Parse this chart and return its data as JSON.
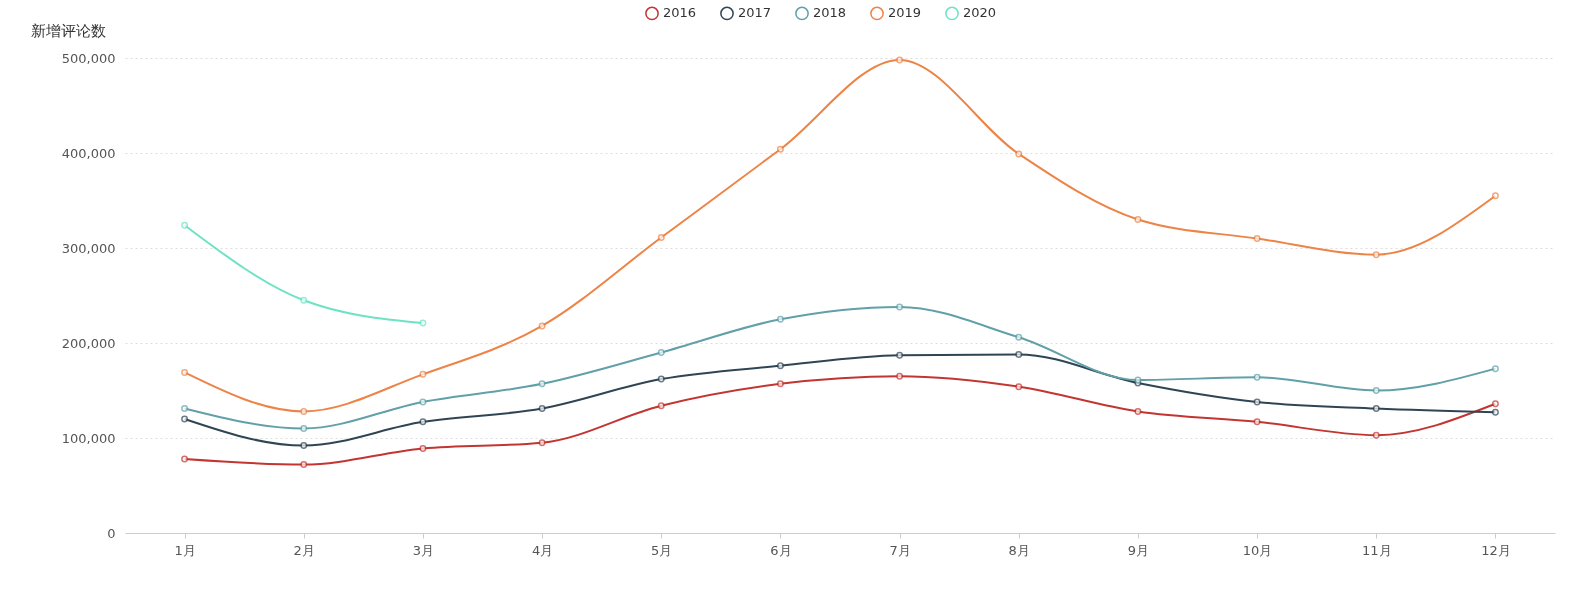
{
  "chart_data": {
    "type": "line",
    "ylabel": "新增评论数",
    "categories": [
      "1月",
      "2月",
      "3月",
      "4月",
      "5月",
      "6月",
      "7月",
      "8月",
      "9月",
      "10月",
      "11月",
      "12月"
    ],
    "series": [
      {
        "name": "2016",
        "color": "#c23531",
        "values": [
          78000,
          72000,
          89000,
          95000,
          134000,
          157000,
          165000,
          154000,
          128000,
          117000,
          103000,
          136000
        ]
      },
      {
        "name": "2017",
        "color": "#2f4554",
        "values": [
          120000,
          92000,
          117000,
          131000,
          162000,
          176000,
          187000,
          188000,
          158000,
          138000,
          131000,
          127000
        ]
      },
      {
        "name": "2018",
        "color": "#61a0a8",
        "values": [
          131000,
          110000,
          138000,
          157000,
          190000,
          225000,
          238000,
          206000,
          161000,
          164000,
          150000,
          173000
        ]
      },
      {
        "name": "2019",
        "color": "#ed8447",
        "values": [
          169000,
          128000,
          167000,
          218000,
          311000,
          404000,
          498000,
          399000,
          330000,
          310000,
          293000,
          355000
        ]
      },
      {
        "name": "2020",
        "color": "#6ee2c4",
        "values": [
          324000,
          245000,
          221000,
          null,
          null,
          null,
          null,
          null,
          null,
          null,
          null,
          null
        ]
      }
    ],
    "ylim": [
      0,
      500000
    ],
    "yticks": [
      0,
      {
        "value": 100000,
        "label": "100,000"
      },
      {
        "value": 200000,
        "label": "200,000"
      },
      {
        "value": 300000,
        "label": "300,000"
      },
      {
        "value": 400000,
        "label": "400,000"
      },
      {
        "value": 500000,
        "label": "500,000"
      }
    ],
    "grid": "y",
    "legend": "top",
    "marker": "circle",
    "line_style": "solid"
  }
}
